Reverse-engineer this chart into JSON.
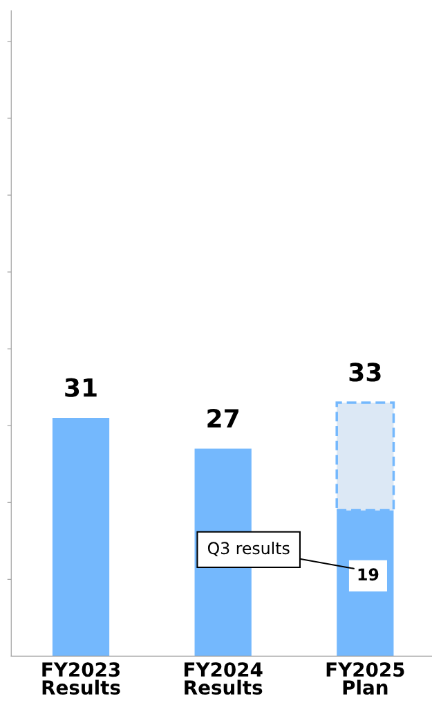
{
  "chart_data": {
    "type": "bar",
    "stacked": true,
    "categories": [
      "FY2023\nResults",
      "FY2024\nResults",
      "FY2025\nPlan"
    ],
    "series": [
      {
        "color": "#74b8fd",
        "values": [
          31,
          27,
          19
        ],
        "value_labels": [
          "31",
          "27",
          "19"
        ]
      },
      {
        "color": "#dce8f5",
        "line_style": "dashed",
        "values": [
          null,
          null,
          14
        ]
      }
    ],
    "totals": [
      null,
      null,
      "33"
    ],
    "ylim": [
      0,
      84
    ],
    "yticks": [
      {
        "value": 10,
        "label": null
      },
      {
        "value": 20,
        "label": null
      },
      {
        "value": 30,
        "label": null
      },
      {
        "value": 40,
        "label": null
      },
      {
        "value": 50,
        "label": null
      },
      {
        "value": 60,
        "label": null
      },
      {
        "value": 70,
        "label": null
      },
      {
        "value": 80,
        "label": null
      }
    ],
    "annotations": [
      "Q3 results"
    ],
    "grid": false,
    "legend": false
  }
}
